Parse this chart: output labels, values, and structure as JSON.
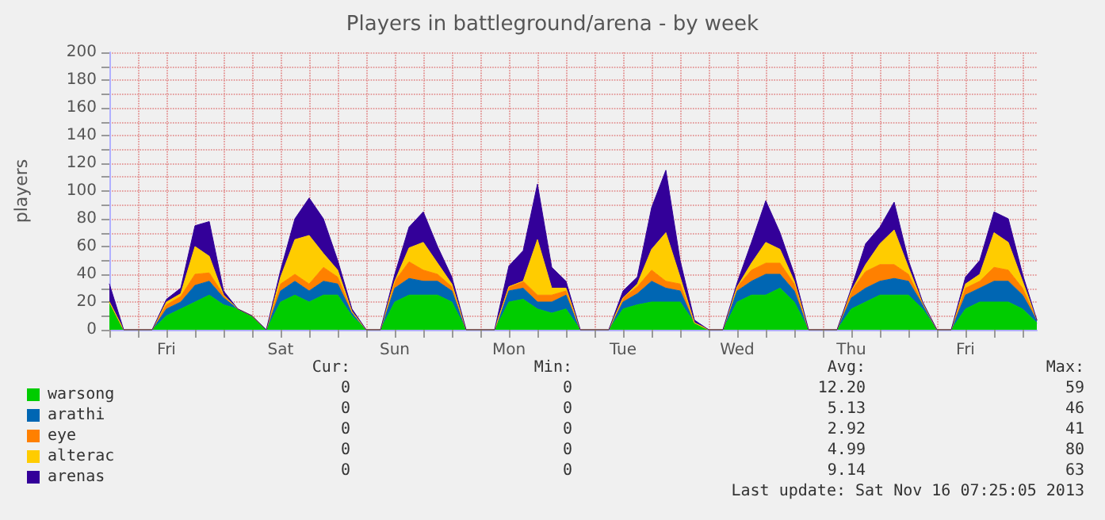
{
  "chart_data": {
    "type": "area",
    "stacked": true,
    "title": "Players in battleground/arena - by week",
    "ylabel": "players",
    "categories": [
      null,
      null,
      null,
      null,
      "Fri",
      null,
      null,
      null,
      null,
      null,
      null,
      null,
      "Sat",
      null,
      null,
      null,
      null,
      null,
      null,
      null,
      "Sun",
      null,
      null,
      null,
      null,
      null,
      null,
      null,
      "Mon",
      null,
      null,
      null,
      null,
      null,
      null,
      null,
      "Tue",
      null,
      null,
      null,
      null,
      null,
      null,
      null,
      "Wed",
      null,
      null,
      null,
      null,
      null,
      null,
      null,
      "Thu",
      null,
      null,
      null,
      null,
      null,
      null,
      null,
      "Fri",
      null,
      null,
      null,
      null,
      null
    ],
    "series": [
      {
        "name": "warsong",
        "color": "#00cc00",
        "values": [
          20,
          0,
          0,
          0,
          10,
          15,
          20,
          25,
          18,
          15,
          10,
          0,
          20,
          25,
          20,
          25,
          25,
          10,
          0,
          0,
          20,
          25,
          25,
          25,
          20,
          0,
          0,
          0,
          20,
          22,
          15,
          12,
          15,
          0,
          0,
          0,
          15,
          18,
          20,
          20,
          20,
          5,
          0,
          0,
          20,
          25,
          25,
          30,
          20,
          0,
          0,
          0,
          15,
          20,
          25,
          25,
          25,
          15,
          0,
          0,
          15,
          20,
          20,
          20,
          15,
          5
        ]
      },
      {
        "name": "arathi",
        "color": "#0066b3",
        "values": [
          0,
          0,
          0,
          0,
          5,
          5,
          12,
          10,
          5,
          0,
          0,
          0,
          8,
          10,
          8,
          10,
          8,
          2,
          0,
          0,
          10,
          12,
          10,
          10,
          8,
          0,
          0,
          0,
          8,
          8,
          5,
          8,
          10,
          0,
          0,
          0,
          5,
          8,
          15,
          10,
          8,
          0,
          0,
          0,
          8,
          10,
          15,
          10,
          8,
          0,
          0,
          0,
          8,
          10,
          10,
          12,
          10,
          3,
          0,
          0,
          10,
          10,
          15,
          15,
          10,
          2
        ]
      },
      {
        "name": "eye",
        "color": "#ff8000",
        "values": [
          0,
          0,
          0,
          0,
          3,
          4,
          8,
          6,
          2,
          0,
          0,
          0,
          5,
          5,
          5,
          10,
          5,
          1,
          0,
          0,
          5,
          12,
          8,
          5,
          3,
          0,
          0,
          0,
          3,
          5,
          5,
          5,
          3,
          0,
          0,
          0,
          3,
          5,
          8,
          5,
          5,
          0,
          0,
          0,
          3,
          8,
          8,
          8,
          5,
          0,
          0,
          0,
          5,
          12,
          12,
          10,
          5,
          1,
          0,
          0,
          5,
          5,
          10,
          8,
          5,
          0
        ]
      },
      {
        "name": "alterac",
        "color": "#ffcc00",
        "values": [
          0,
          0,
          0,
          0,
          2,
          2,
          20,
          12,
          0,
          0,
          0,
          0,
          5,
          25,
          35,
          10,
          5,
          0,
          0,
          0,
          0,
          10,
          20,
          8,
          2,
          0,
          0,
          0,
          0,
          0,
          40,
          5,
          2,
          0,
          0,
          0,
          0,
          2,
          15,
          35,
          5,
          0,
          0,
          0,
          0,
          5,
          15,
          10,
          2,
          0,
          0,
          0,
          0,
          5,
          15,
          25,
          5,
          0,
          0,
          0,
          3,
          5,
          25,
          20,
          5,
          0
        ]
      },
      {
        "name": "arenas",
        "color": "#330099",
        "values": [
          13,
          0,
          0,
          0,
          2,
          4,
          15,
          25,
          3,
          0,
          0,
          0,
          5,
          15,
          27,
          25,
          7,
          2,
          0,
          0,
          5,
          15,
          22,
          12,
          5,
          0,
          0,
          0,
          15,
          22,
          40,
          15,
          5,
          0,
          0,
          0,
          5,
          5,
          30,
          45,
          12,
          2,
          0,
          0,
          3,
          15,
          30,
          12,
          5,
          0,
          0,
          0,
          2,
          15,
          12,
          20,
          5,
          1,
          0,
          0,
          5,
          10,
          15,
          17,
          5,
          0
        ]
      }
    ],
    "ylim": [
      0,
      200
    ],
    "yticks": [
      0,
      {
        "value": 10,
        "label": null
      },
      20,
      {
        "value": 30,
        "label": null
      },
      40,
      {
        "value": 50,
        "label": null
      },
      60,
      {
        "value": 70,
        "label": null
      },
      80,
      {
        "value": 90,
        "label": null
      },
      100,
      {
        "value": 110,
        "label": null
      },
      120,
      {
        "value": 130,
        "label": null
      },
      140,
      {
        "value": 150,
        "label": null
      },
      160,
      {
        "value": 170,
        "label": null
      },
      180,
      {
        "value": 190,
        "label": null
      },
      200
    ],
    "grid": true,
    "legend": "bottom left",
    "marker": "none",
    "line_style": "solid",
    "annotations": [
      "Cur:",
      "Min:",
      "Avg:",
      "Max:",
      "0",
      "0",
      "12.20",
      "59",
      "0",
      "0",
      "5.13",
      "46",
      "0",
      "0",
      "2.92",
      "41",
      "0",
      "0",
      "4.99",
      "80",
      "0",
      "0",
      "9.14",
      "63",
      "Last update: Sat Nov 16 07:25:05 2013"
    ]
  }
}
